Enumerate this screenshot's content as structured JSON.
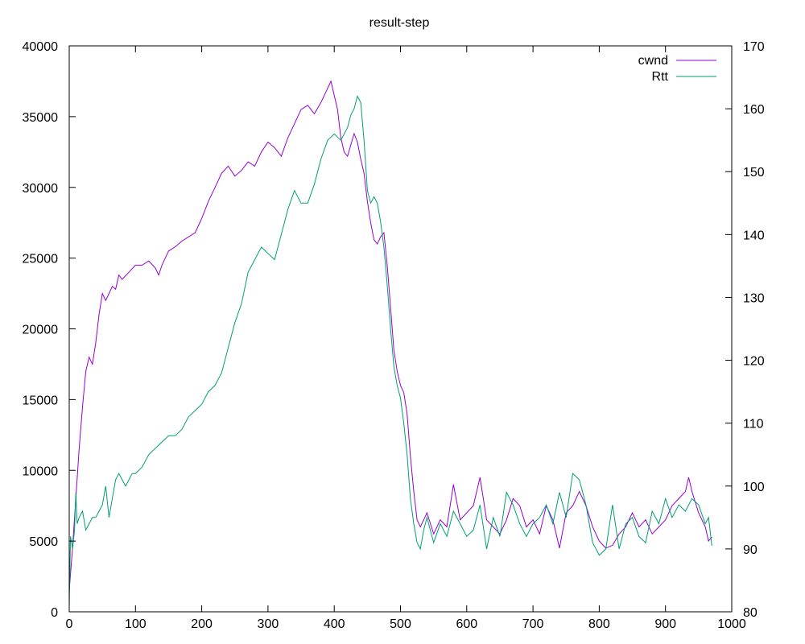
{
  "chart_data": {
    "type": "line",
    "title": "result-step",
    "xlabel": "",
    "ylabel": "",
    "y2label": "",
    "xlim": [
      0,
      1000
    ],
    "ylim": [
      0,
      40000
    ],
    "y2lim": [
      80,
      170
    ],
    "x_ticks": [
      "0",
      "100",
      "200",
      "300",
      "400",
      "500",
      "600",
      "700",
      "800",
      "900",
      "1000"
    ],
    "y_ticks": [
      "0",
      "5000",
      "10000",
      "15000",
      "20000",
      "25000",
      "30000",
      "35000",
      "40000"
    ],
    "y2_ticks": [
      "80",
      "90",
      "100",
      "110",
      "120",
      "130",
      "140",
      "150",
      "160",
      "170"
    ],
    "grid": false,
    "legend_position": "top-right",
    "series": [
      {
        "name": "cwnd",
        "axis": "y1",
        "color": "#9400d3",
        "x": [
          0,
          5,
          10,
          15,
          20,
          25,
          30,
          35,
          40,
          45,
          50,
          55,
          60,
          65,
          70,
          75,
          80,
          90,
          100,
          110,
          120,
          130,
          135,
          140,
          150,
          160,
          170,
          180,
          190,
          200,
          210,
          220,
          230,
          240,
          250,
          260,
          270,
          280,
          290,
          300,
          310,
          320,
          330,
          340,
          350,
          360,
          370,
          380,
          390,
          395,
          400,
          405,
          410,
          415,
          420,
          425,
          430,
          435,
          440,
          445,
          450,
          455,
          460,
          465,
          470,
          475,
          480,
          485,
          490,
          495,
          500,
          505,
          510,
          515,
          520,
          525,
          530,
          535,
          540,
          550,
          560,
          570,
          580,
          590,
          600,
          610,
          620,
          630,
          640,
          650,
          660,
          670,
          680,
          690,
          700,
          710,
          720,
          730,
          740,
          750,
          760,
          770,
          780,
          790,
          800,
          810,
          820,
          830,
          840,
          850,
          860,
          870,
          880,
          890,
          900,
          910,
          920,
          930,
          935,
          940,
          950,
          960,
          965,
          970
        ],
        "y": [
          1500,
          4500,
          8000,
          11500,
          14500,
          17000,
          18000,
          17500,
          19000,
          21000,
          22500,
          22000,
          22500,
          23000,
          22800,
          23800,
          23500,
          24000,
          24500,
          24500,
          24800,
          24300,
          23800,
          24500,
          25500,
          25800,
          26200,
          26500,
          26800,
          27800,
          29000,
          30000,
          31000,
          31500,
          30800,
          31200,
          31800,
          31500,
          32500,
          33200,
          32800,
          32200,
          33500,
          34500,
          35500,
          35800,
          35200,
          36000,
          37000,
          37500,
          36500,
          35500,
          33500,
          32500,
          32200,
          33000,
          33800,
          33200,
          32000,
          31000,
          29000,
          27500,
          26300,
          26000,
          26500,
          26800,
          24500,
          21500,
          18500,
          17000,
          16000,
          15500,
          14000,
          11000,
          8500,
          6500,
          6000,
          6500,
          7000,
          5500,
          6500,
          6000,
          9000,
          6500,
          7000,
          7500,
          9500,
          6500,
          6000,
          5500,
          6500,
          8000,
          7500,
          6000,
          6500,
          5500,
          7500,
          6500,
          4500,
          7000,
          7500,
          8500,
          7500,
          6000,
          5000,
          4500,
          4700,
          5500,
          6000,
          7000,
          6000,
          6500,
          5500,
          6000,
          6500,
          7500,
          8000,
          8500,
          9500,
          8500,
          7000,
          6000,
          5000,
          5300
        ]
      },
      {
        "name": "Rtt",
        "axis": "y2",
        "color": "#009e73",
        "x": [
          0,
          2,
          5,
          8,
          10,
          12,
          15,
          20,
          25,
          30,
          35,
          40,
          45,
          50,
          55,
          60,
          65,
          70,
          75,
          80,
          85,
          90,
          95,
          100,
          110,
          120,
          130,
          140,
          150,
          160,
          170,
          180,
          190,
          200,
          210,
          220,
          230,
          240,
          250,
          260,
          270,
          280,
          290,
          300,
          310,
          320,
          330,
          340,
          350,
          360,
          370,
          380,
          390,
          400,
          410,
          420,
          425,
          430,
          435,
          440,
          445,
          450,
          455,
          460,
          465,
          470,
          475,
          480,
          485,
          490,
          495,
          500,
          505,
          510,
          515,
          520,
          525,
          530,
          535,
          540,
          550,
          560,
          570,
          580,
          590,
          600,
          610,
          620,
          630,
          640,
          650,
          660,
          670,
          680,
          690,
          700,
          710,
          720,
          730,
          740,
          750,
          760,
          770,
          780,
          790,
          800,
          810,
          820,
          830,
          840,
          850,
          860,
          870,
          880,
          890,
          900,
          910,
          920,
          930,
          940,
          950,
          960,
          965,
          970
        ],
        "y": [
          81,
          92,
          90,
          93,
          99,
          94,
          95,
          96,
          93,
          94,
          95,
          95,
          96,
          97,
          100,
          95,
          98,
          101,
          102,
          101,
          100,
          101,
          102,
          102,
          103,
          105,
          106,
          107,
          108,
          108,
          109,
          111,
          112,
          113,
          115,
          116,
          118,
          122,
          126,
          129,
          134,
          136,
          138,
          137,
          136,
          140,
          144,
          147,
          145,
          145,
          148,
          152,
          155,
          156,
          155,
          157,
          159,
          160,
          162,
          161,
          155,
          147,
          145,
          146,
          145,
          142,
          138,
          132,
          125,
          119,
          116,
          114,
          110,
          105,
          98,
          94,
          91,
          90,
          93,
          95,
          91,
          94,
          92,
          96,
          94,
          92,
          93,
          97,
          90,
          95,
          92,
          99,
          97,
          94,
          92,
          94,
          95,
          97,
          94,
          99,
          95,
          102,
          101,
          97,
          91,
          89,
          90,
          97,
          90,
          94,
          95,
          92,
          91,
          96,
          94,
          98,
          95,
          97,
          96,
          98,
          97,
          94,
          95,
          90.5
        ]
      }
    ]
  }
}
